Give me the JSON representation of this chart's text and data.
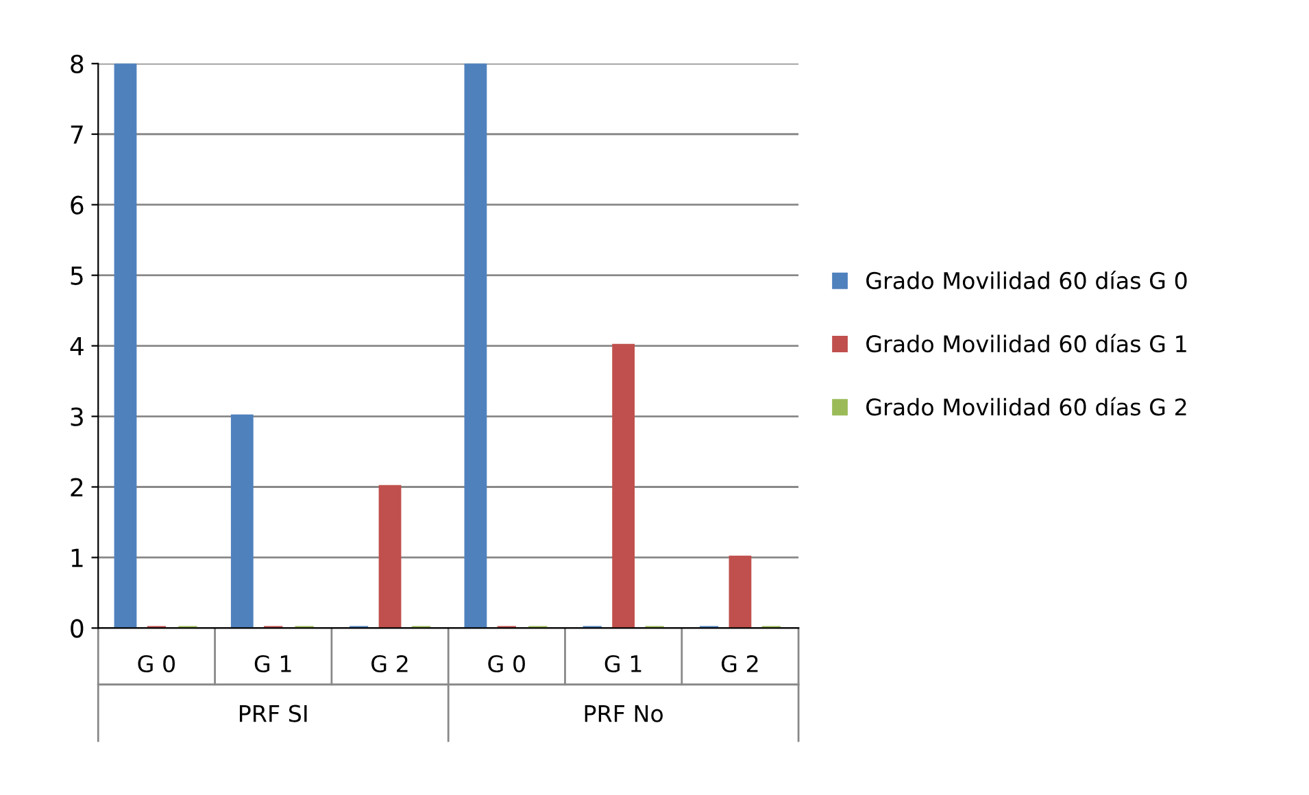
{
  "chart_data": {
    "type": "bar",
    "categories": [
      "G 0",
      "G 1",
      "G 2",
      "G 0",
      "G 1",
      "G 2"
    ],
    "series": [
      {
        "name": "Grado Movilidad 60 días G 0",
        "color": "#4f81bd",
        "values": [
          8,
          3,
          0,
          8,
          0,
          0
        ]
      },
      {
        "name": "Grado Movilidad 60 días G 1",
        "color": "#c0504d",
        "values": [
          0,
          0,
          2,
          0,
          4,
          1
        ]
      },
      {
        "name": "Grado Movilidad 60 días G 2",
        "color": "#9bbb59",
        "values": [
          0,
          0,
          0,
          0,
          0,
          0
        ]
      }
    ],
    "annotations": [
      "PRF SI",
      "PRF No"
    ],
    "ylim": [
      0,
      8
    ],
    "yticks": [
      0,
      1,
      2,
      3,
      4,
      5,
      6,
      7,
      8
    ],
    "grid": "y",
    "legend": "right"
  }
}
